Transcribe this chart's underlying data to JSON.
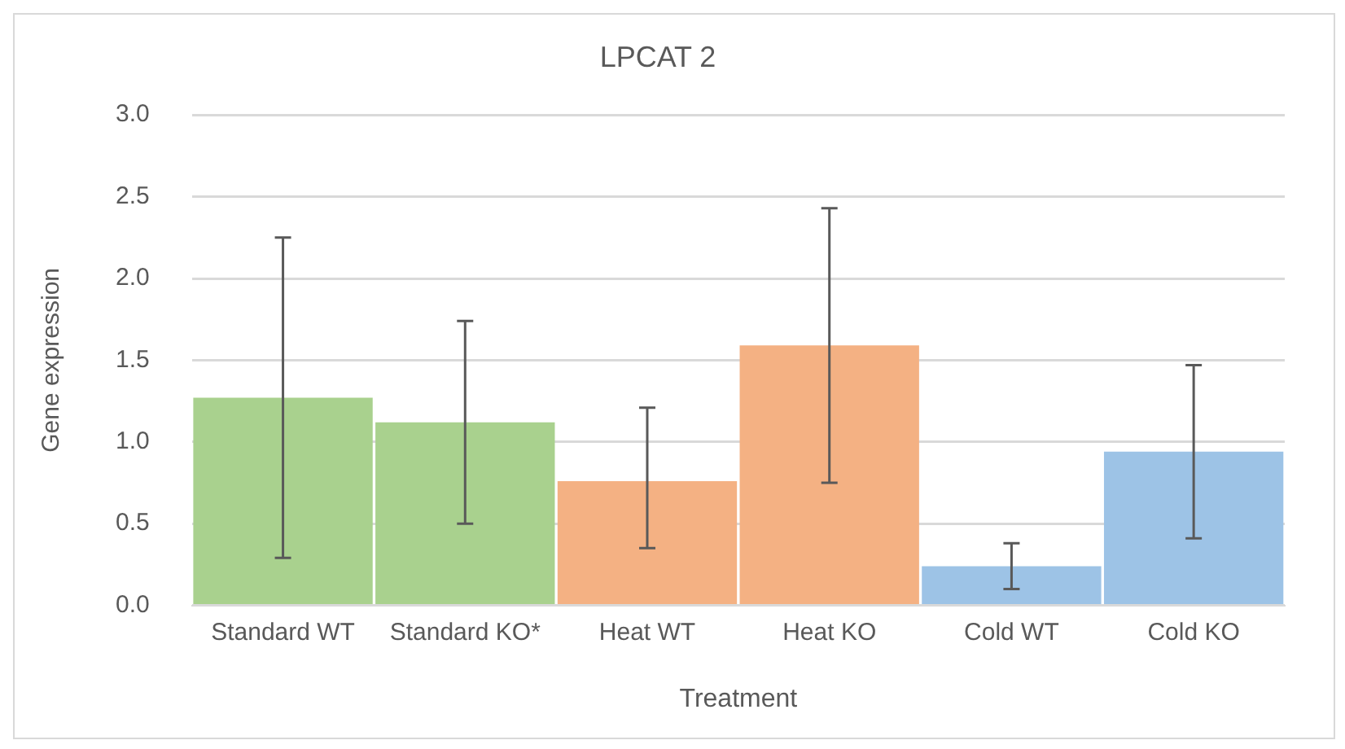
{
  "chart_data": {
    "type": "bar",
    "title": "LPCAT 2",
    "xlabel": "Treatment",
    "ylabel": "Gene expression",
    "categories": [
      "Standard WT",
      "Standard KO*",
      "Heat WT",
      "Heat KO",
      "Cold WT",
      "Cold KO"
    ],
    "values": [
      1.27,
      1.12,
      0.76,
      1.59,
      0.24,
      0.94
    ],
    "colors": [
      "#a9d18e",
      "#a9d18e",
      "#f4b183",
      "#f4b183",
      "#9dc3e6",
      "#9dc3e6"
    ],
    "errors": [
      [
        0.29,
        2.25
      ],
      [
        0.5,
        1.74
      ],
      [
        0.35,
        1.21
      ],
      [
        0.75,
        2.43
      ],
      [
        0.1,
        0.38
      ],
      [
        0.41,
        1.47
      ]
    ],
    "ylim": [
      0,
      3
    ],
    "yticks": [
      {
        "value": 0,
        "label": "0.0"
      },
      0.5,
      {
        "value": 1,
        "label": "1.0"
      },
      1.5,
      {
        "value": 2,
        "label": "2.0"
      },
      2.5,
      {
        "value": 3,
        "label": "3.0"
      }
    ],
    "grid": "y"
  }
}
